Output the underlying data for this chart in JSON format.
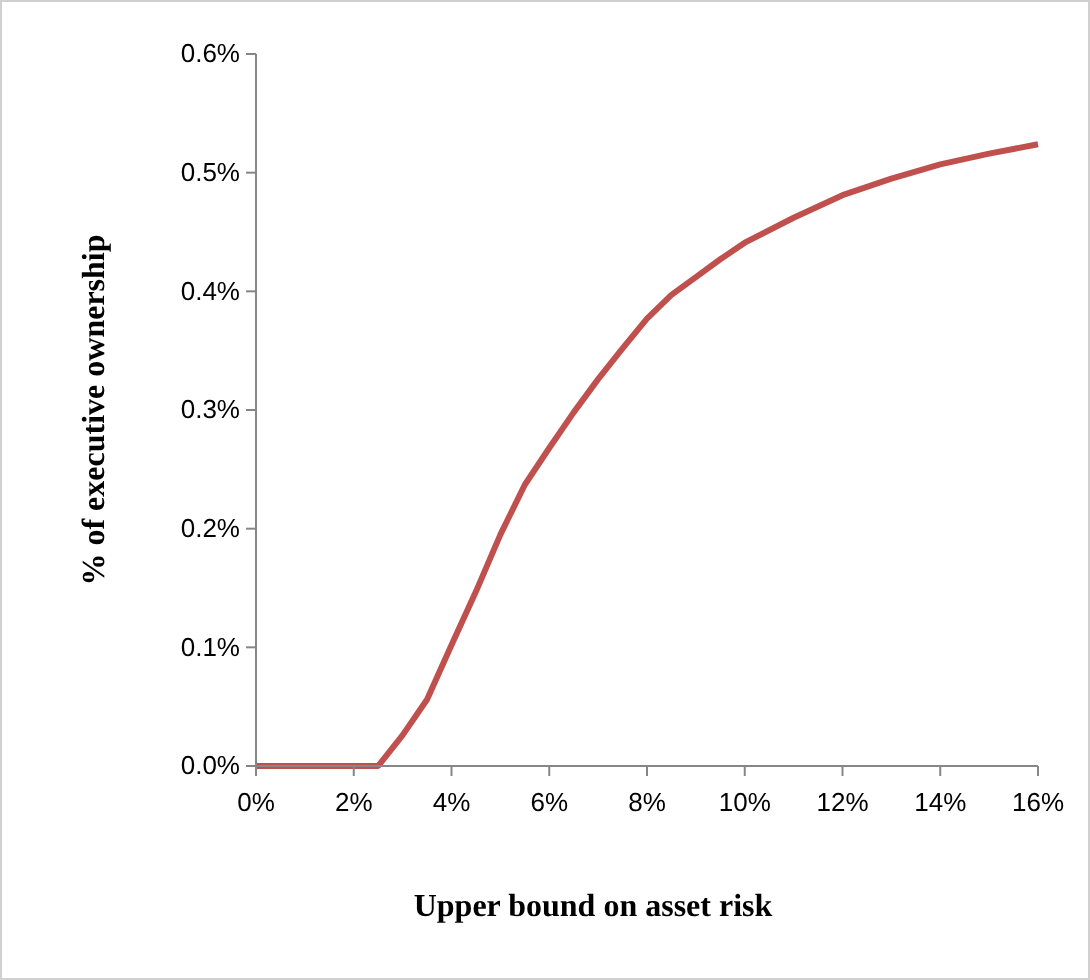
{
  "chart_data": {
    "type": "line",
    "xlabel": "Upper bound on asset risk",
    "ylabel": "% of executive ownership",
    "x": [
      0,
      1,
      2,
      2.5,
      3,
      3.5,
      4,
      4.5,
      5,
      5.5,
      6,
      6.5,
      7,
      7.5,
      8,
      8.5,
      9,
      9.5,
      10,
      11,
      12,
      13,
      14,
      15,
      16
    ],
    "series": [
      {
        "color": "#c0504d",
        "values": [
          0,
          0,
          0,
          0,
          0.026,
          0.056,
          0.102,
          0.147,
          0.195,
          0.237,
          0.268,
          0.298,
          0.326,
          0.352,
          0.377,
          0.397,
          0.412,
          0.427,
          0.441,
          0.462,
          0.481,
          0.495,
          0.507,
          0.516,
          0.524
        ]
      }
    ],
    "xlim": [
      0,
      16
    ],
    "xticks": [
      {
        "value": 0,
        "label": "0%"
      },
      {
        "value": 2,
        "label": "2%"
      },
      {
        "value": 4,
        "label": "4%"
      },
      {
        "value": 6,
        "label": "6%"
      },
      {
        "value": 8,
        "label": "8%"
      },
      {
        "value": 10,
        "label": "10%"
      },
      {
        "value": 12,
        "label": "12%"
      },
      {
        "value": 14,
        "label": "14%"
      },
      {
        "value": 16,
        "label": "16%"
      }
    ],
    "ylim": [
      0,
      0.6
    ],
    "yticks": [
      {
        "value": 0,
        "label": "0.0%"
      },
      {
        "value": 0.1,
        "label": "0.1%"
      },
      {
        "value": 0.2,
        "label": "0.2%"
      },
      {
        "value": 0.3,
        "label": "0.3%"
      },
      {
        "value": 0.4,
        "label": "0.4%"
      },
      {
        "value": 0.5,
        "label": "0.5%"
      },
      {
        "value": 0.6,
        "label": "0.6%"
      }
    ],
    "grid": false,
    "marker": "none",
    "line_style": "solid"
  }
}
